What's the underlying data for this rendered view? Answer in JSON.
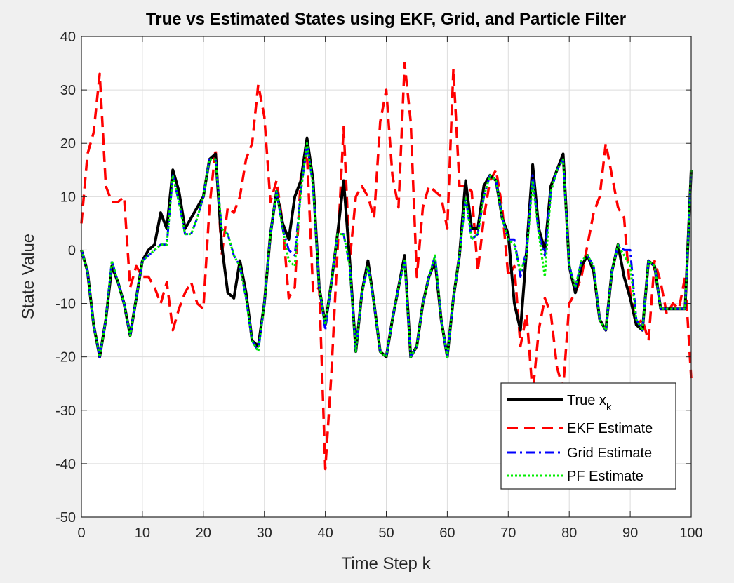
{
  "chart_data": {
    "type": "line",
    "title": "True vs Estimated States using EKF, Grid, and Particle Filter",
    "xlabel": "Time Step k",
    "ylabel": "State Value",
    "xlim": [
      0,
      100
    ],
    "ylim": [
      -50,
      40
    ],
    "xticks": [
      0,
      10,
      20,
      30,
      40,
      50,
      60,
      70,
      80,
      90,
      100
    ],
    "yticks": [
      -50,
      -40,
      -30,
      -20,
      -10,
      0,
      10,
      20,
      30,
      40
    ],
    "grid": true,
    "legend_position": "bottom-right",
    "legend": {
      "true_main": "True x",
      "true_sub": "k"
    },
    "x": [
      0,
      1,
      2,
      3,
      4,
      5,
      6,
      7,
      8,
      9,
      10,
      11,
      12,
      13,
      14,
      15,
      16,
      17,
      18,
      19,
      20,
      21,
      22,
      23,
      24,
      25,
      26,
      27,
      28,
      29,
      30,
      31,
      32,
      33,
      34,
      35,
      36,
      37,
      38,
      39,
      40,
      41,
      42,
      43,
      44,
      45,
      46,
      47,
      48,
      49,
      50,
      51,
      52,
      53,
      54,
      55,
      56,
      57,
      58,
      59,
      60,
      61,
      62,
      63,
      64,
      65,
      66,
      67,
      68,
      69,
      70,
      71,
      72,
      73,
      74,
      75,
      76,
      77,
      78,
      79,
      80,
      81,
      82,
      83,
      84,
      85,
      86,
      87,
      88,
      89,
      90,
      91,
      92,
      93,
      94,
      95,
      96,
      97,
      98,
      99,
      100
    ],
    "series": [
      {
        "name": "True x_k",
        "color": "#000000",
        "style": "solid",
        "values": [
          0,
          -4,
          -14,
          -20,
          -13,
          -3,
          -6,
          -10,
          -16,
          -9,
          -2,
          0,
          1,
          7,
          4,
          15,
          11,
          4,
          6,
          8,
          10,
          17,
          18,
          1,
          -8,
          -9,
          -2,
          -8,
          -17,
          -18,
          -10,
          3,
          11,
          5,
          2,
          10,
          13,
          21,
          13,
          -7,
          -14,
          -6,
          3,
          13,
          -2,
          -19,
          -8,
          -2,
          -10,
          -19,
          -20,
          -13,
          -7,
          -1,
          -20,
          -18,
          -10,
          -5,
          -2,
          -13,
          -20,
          -9,
          -1,
          13,
          4,
          4,
          12,
          14,
          13,
          6,
          3,
          -10,
          -15,
          0,
          16,
          4,
          0,
          12,
          15,
          18,
          -3,
          -8,
          -3,
          -1,
          -4,
          -13,
          -15,
          -4,
          1,
          -5,
          -9,
          -14,
          -15,
          -2,
          -3,
          -11,
          -11,
          -11,
          -11,
          -11,
          15
        ]
      },
      {
        "name": "EKF Estimate",
        "color": "#ff0000",
        "style": "dashed",
        "values": [
          5,
          18,
          22,
          33,
          12,
          9,
          9,
          10,
          -7,
          -3,
          -5,
          -5,
          -7,
          -10,
          -6,
          -15,
          -11,
          -8,
          -6,
          -10,
          -11,
          8,
          19,
          -1,
          8,
          7,
          10,
          17,
          20,
          31,
          25,
          9,
          13,
          5,
          -9,
          -7,
          14,
          18,
          -8,
          -7,
          -41,
          -23,
          0,
          23,
          -2,
          10,
          12,
          10,
          6,
          24,
          30,
          14,
          8,
          35,
          24,
          -5,
          8,
          12,
          11,
          10,
          4,
          34,
          12,
          12,
          11,
          -4,
          6,
          13,
          15,
          8,
          -5,
          -3,
          -18,
          -12,
          -27,
          -15,
          -9,
          -12,
          -22,
          -26,
          -10,
          -8,
          -5,
          1,
          7,
          10,
          20,
          14,
          8,
          6,
          -8,
          -14,
          -13,
          -17,
          -2,
          -6,
          -12,
          -10,
          -11,
          -5,
          -24
        ]
      },
      {
        "name": "Grid Estimate",
        "color": "#0000ff",
        "style": "dashdot",
        "values": [
          0,
          -4,
          -14,
          -20,
          -13,
          -2,
          -6,
          -10,
          -16,
          -9,
          -2,
          -1,
          0,
          1,
          1,
          14,
          9,
          3,
          3,
          6,
          10,
          17,
          17,
          4,
          3,
          -1,
          -3,
          -9,
          -17,
          -19,
          -10,
          3,
          11,
          4,
          0,
          -1,
          11,
          20,
          12,
          -7,
          -15,
          -6,
          3,
          3,
          -3,
          -19,
          -8,
          -3,
          -10,
          -19,
          -20,
          -13,
          -7,
          -2,
          -20,
          -18,
          -10,
          -5,
          -1,
          -13,
          -20,
          -9,
          -1,
          10,
          2,
          3,
          10,
          14,
          13,
          6,
          2,
          2,
          -5,
          0,
          14,
          3,
          -1,
          11,
          15,
          17,
          -3,
          -7,
          -2,
          -1,
          -3,
          -13,
          -15,
          -4,
          1,
          0,
          0,
          -13,
          -15,
          -2,
          -3,
          -11,
          -11,
          -11,
          -11,
          -11,
          15
        ]
      },
      {
        "name": "PF Estimate",
        "color": "#00ee00",
        "style": "dotted",
        "values": [
          0,
          -4,
          -14,
          -20,
          -13,
          -2,
          -6,
          -10,
          -16,
          -9,
          -2,
          -1,
          0,
          1,
          1,
          14,
          9,
          3,
          3,
          6,
          10,
          17,
          17,
          4,
          3,
          -1,
          -3,
          -9,
          -17,
          -19,
          -10,
          3,
          11,
          4,
          -2,
          -3,
          11,
          20,
          12,
          -7,
          -14,
          -6,
          3,
          3,
          -3,
          -19,
          -8,
          -3,
          -10,
          -19,
          -20,
          -13,
          -7,
          -2,
          -20,
          -18,
          -10,
          -5,
          -1,
          -13,
          -20,
          -9,
          -1,
          10,
          2,
          3,
          10,
          14,
          13,
          6,
          2,
          1,
          -4,
          -1,
          13,
          3,
          -5,
          11,
          15,
          17,
          -3,
          -7,
          -2,
          -1,
          -3,
          -13,
          -15,
          -4,
          1,
          -1,
          -3,
          -13,
          -15,
          -2,
          -3,
          -11,
          -11,
          -11,
          -11,
          -11,
          15
        ]
      }
    ]
  }
}
